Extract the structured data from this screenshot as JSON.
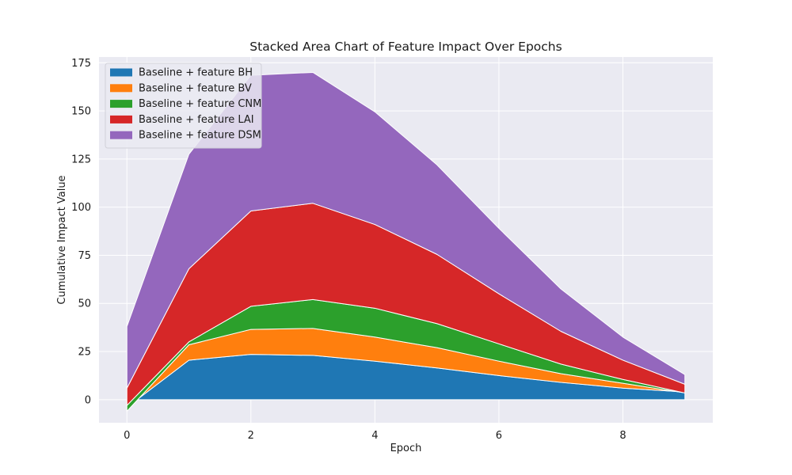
{
  "chart_data": {
    "type": "area",
    "stacked": true,
    "title": "Stacked Area Chart of Feature Impact Over Epochs",
    "xlabel": "Epoch",
    "ylabel": "Cumulative Impact Value",
    "xlim": [
      -0.45,
      9.45
    ],
    "ylim": [
      -12,
      178
    ],
    "xticks": [
      0,
      2,
      4,
      6,
      8
    ],
    "yticks": [
      0,
      25,
      50,
      75,
      100,
      125,
      150,
      175
    ],
    "grid": true,
    "legend_position": "top-left",
    "x": [
      0,
      1,
      2,
      3,
      4,
      5,
      6,
      7,
      8,
      9
    ],
    "series": [
      {
        "name": "Baseline + feature BH",
        "color": "#1f77b4",
        "values": [
          -4,
          20.5,
          23.5,
          23,
          20,
          16.5,
          12.5,
          9,
          6,
          4
        ]
      },
      {
        "name": "Baseline + feature BV",
        "color": "#ff7f0e",
        "values": [
          -2,
          8,
          13,
          14,
          12.5,
          10.5,
          7.5,
          4.5,
          2.5,
          -0.5
        ]
      },
      {
        "name": "Baseline + feature CNM",
        "color": "#2ca02c",
        "values": [
          3,
          1.5,
          12,
          15,
          15,
          12.5,
          9,
          5,
          2,
          0
        ]
      },
      {
        "name": "Baseline + feature LAI",
        "color": "#d62728",
        "values": [
          9,
          38,
          49.5,
          50,
          43.5,
          36,
          26,
          17,
          10,
          4.5
        ]
      },
      {
        "name": "Baseline + feature DSM",
        "color": "#9467bd",
        "values": [
          32,
          59.5,
          70.5,
          68,
          58.5,
          46.5,
          34,
          22,
          12,
          5
        ]
      }
    ]
  }
}
